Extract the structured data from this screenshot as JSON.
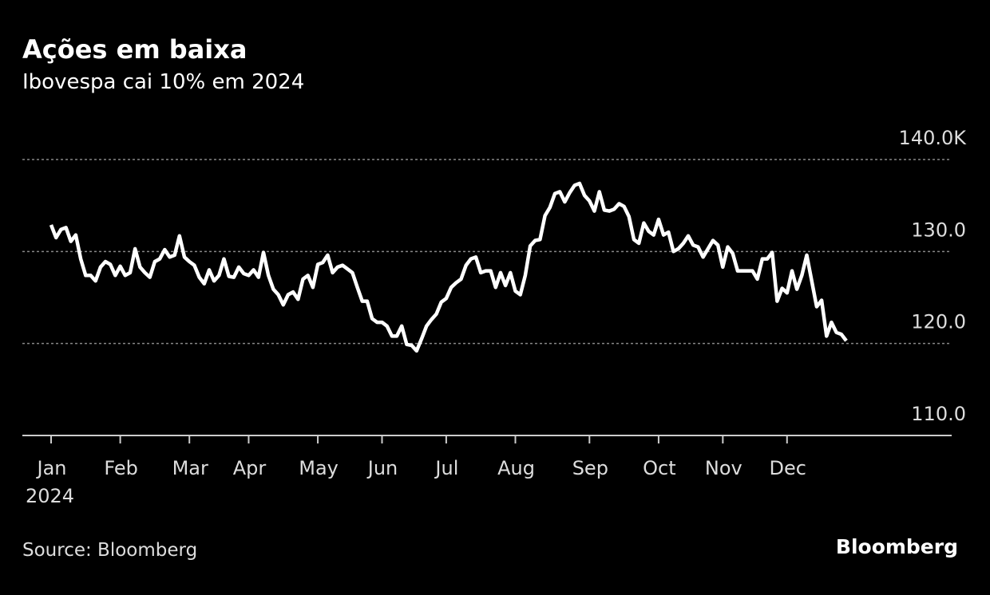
{
  "chart_data": {
    "type": "line",
    "title": "Ações em baixa",
    "subtitle": "Ibovespa cai 10% em 2024",
    "source": "Source: Bloomberg",
    "brand": "Bloomberg",
    "x_sublabel": "2024",
    "color": "#ffffff",
    "categories": [
      "Jan",
      null,
      null,
      null,
      null,
      null,
      null,
      null,
      null,
      null,
      null,
      null,
      null,
      null,
      "Feb",
      null,
      null,
      null,
      null,
      null,
      null,
      null,
      null,
      null,
      null,
      null,
      null,
      null,
      "Mar",
      null,
      null,
      null,
      null,
      null,
      null,
      null,
      null,
      null,
      null,
      null,
      "Apr",
      null,
      null,
      null,
      null,
      null,
      null,
      null,
      null,
      null,
      null,
      null,
      null,
      null,
      "May",
      null,
      null,
      null,
      null,
      null,
      null,
      null,
      null,
      null,
      null,
      null,
      null,
      "Jun",
      null,
      null,
      null,
      null,
      null,
      null,
      null,
      null,
      null,
      null,
      null,
      null,
      "Jul",
      null,
      null,
      null,
      null,
      null,
      null,
      null,
      null,
      null,
      null,
      null,
      null,
      null,
      "Aug",
      null,
      null,
      null,
      null,
      null,
      null,
      null,
      null,
      null,
      null,
      null,
      null,
      null,
      null,
      "Sep",
      null,
      null,
      null,
      null,
      null,
      null,
      null,
      null,
      null,
      null,
      null,
      null,
      null,
      "Oct",
      null,
      null,
      null,
      null,
      null,
      null,
      null,
      null,
      null,
      null,
      null,
      null,
      "Nov",
      null,
      null,
      null,
      null,
      null,
      null,
      null,
      null,
      null,
      null,
      null,
      null,
      "Dec",
      null,
      null,
      null,
      null,
      null,
      null,
      null,
      null,
      null,
      null,
      null,
      null
    ],
    "values": [
      132.9,
      131.5,
      132.4,
      132.6,
      131.1,
      131.8,
      129.2,
      127.4,
      127.4,
      126.8,
      128.3,
      128.9,
      128.6,
      127.4,
      128.4,
      127.4,
      127.7,
      130.3,
      128.3,
      127.7,
      127.2,
      128.9,
      129.2,
      130.2,
      129.4,
      129.6,
      131.7,
      129.4,
      128.9,
      128.5,
      127.2,
      126.5,
      128.0,
      126.8,
      127.4,
      129.2,
      127.3,
      127.2,
      128.3,
      127.6,
      127.4,
      128.0,
      127.2,
      129.9,
      127.4,
      125.9,
      125.3,
      124.2,
      125.3,
      125.6,
      124.8,
      127.0,
      127.4,
      126.1,
      128.6,
      128.8,
      129.6,
      127.7,
      128.3,
      128.5,
      128.1,
      127.7,
      126.1,
      124.6,
      124.6,
      122.7,
      122.3,
      122.3,
      121.9,
      120.8,
      120.8,
      121.9,
      119.9,
      119.8,
      119.2,
      120.5,
      121.9,
      122.6,
      123.2,
      124.5,
      124.9,
      126.1,
      126.6,
      127.0,
      128.5,
      129.2,
      129.4,
      127.7,
      127.9,
      127.9,
      126.1,
      127.7,
      126.3,
      127.7,
      125.7,
      125.3,
      127.4,
      130.6,
      131.2,
      131.3,
      133.9,
      134.8,
      136.3,
      136.5,
      135.4,
      136.4,
      137.2,
      137.4,
      136.1,
      135.5,
      134.4,
      136.5,
      134.5,
      134.4,
      134.6,
      135.2,
      134.9,
      133.8,
      131.3,
      130.9,
      133.1,
      132.2,
      131.8,
      133.5,
      131.8,
      132.1,
      130.0,
      130.3,
      130.9,
      131.7,
      130.7,
      130.5,
      129.4,
      130.3,
      131.2,
      130.7,
      128.3,
      130.5,
      129.8,
      127.9,
      127.9,
      127.9,
      127.9,
      127.0,
      129.2,
      129.2,
      129.9,
      124.6,
      126.0,
      125.5,
      127.9,
      125.9,
      127.4,
      129.6,
      126.8,
      124.0,
      124.7,
      120.8,
      122.3,
      121.2,
      121.0,
      120.3
    ],
    "ylim": [
      110,
      140
    ],
    "yticks": [
      {
        "value": 110,
        "label": "110.0"
      },
      {
        "value": 120,
        "label": "120.0"
      },
      {
        "value": 130,
        "label": "130.0"
      },
      {
        "value": 140,
        "label": "140.0K"
      }
    ],
    "grid": true
  }
}
